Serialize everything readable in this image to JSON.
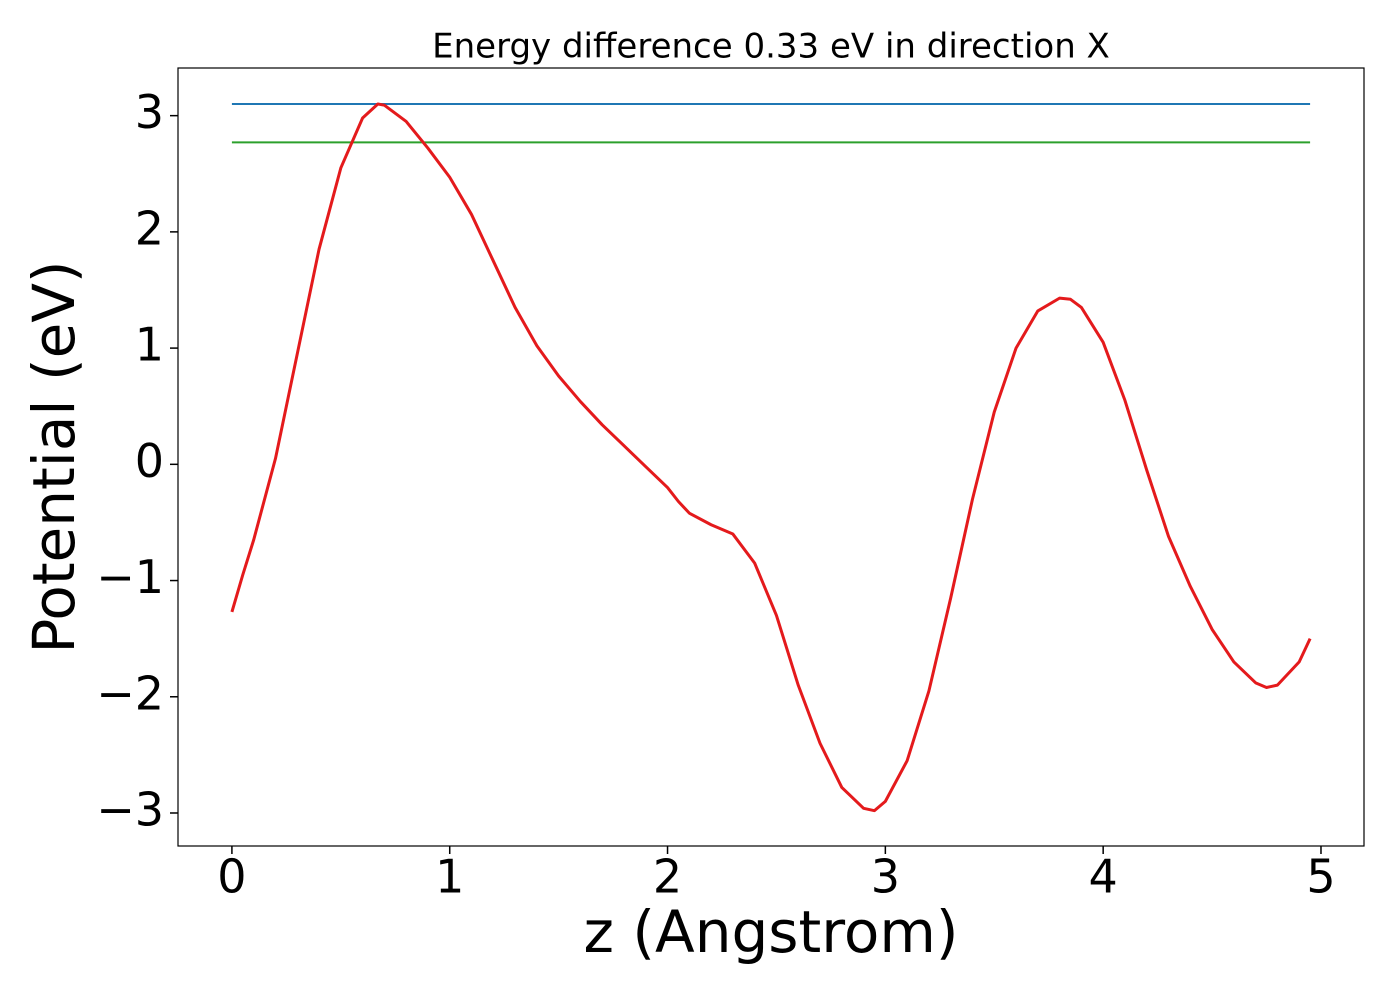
{
  "chart_data": {
    "type": "line",
    "title": "Energy difference 0.33 eV in direction X",
    "xlabel": "z (Angstrom)",
    "ylabel": "Potential (eV)",
    "xlim": [
      -0.2475,
      5.1975
    ],
    "ylim": [
      -3.284,
      3.41
    ],
    "xticks": [
      0,
      1,
      2,
      3,
      4,
      5
    ],
    "yticks": [
      {
        "value": -3,
        "label": "−3"
      },
      {
        "value": -2,
        "label": "−2"
      },
      {
        "value": -1,
        "label": "−1"
      },
      0,
      1,
      2,
      3
    ],
    "series": [
      {
        "color": "#1f77b4",
        "x": [
          0,
          4.95
        ],
        "values": [
          3.1,
          3.1
        ]
      },
      {
        "color": "#2ca02c",
        "x": [
          0,
          4.95
        ],
        "values": [
          2.77,
          2.77
        ]
      },
      {
        "color": "#e41a1c",
        "x": [
          0,
          0.05,
          0.1,
          0.2,
          0.3,
          0.4,
          0.5,
          0.6,
          0.67,
          0.7,
          0.8,
          0.9,
          1.0,
          1.1,
          1.2,
          1.3,
          1.4,
          1.5,
          1.6,
          1.7,
          1.8,
          1.9,
          2.0,
          2.05,
          2.1,
          2.2,
          2.3,
          2.4,
          2.5,
          2.6,
          2.7,
          2.8,
          2.9,
          2.95,
          3.0,
          3.1,
          3.2,
          3.3,
          3.4,
          3.5,
          3.6,
          3.7,
          3.8,
          3.85,
          3.9,
          4.0,
          4.1,
          4.2,
          4.3,
          4.4,
          4.5,
          4.6,
          4.7,
          4.75,
          4.8,
          4.9,
          4.95
        ],
        "values": [
          -1.27,
          -0.95,
          -0.65,
          0.05,
          0.95,
          1.85,
          2.55,
          2.98,
          3.1,
          3.09,
          2.95,
          2.72,
          2.47,
          2.15,
          1.75,
          1.35,
          1.02,
          0.76,
          0.54,
          0.34,
          0.16,
          -0.02,
          -0.2,
          -0.32,
          -0.42,
          -0.52,
          -0.6,
          -0.85,
          -1.3,
          -1.9,
          -2.4,
          -2.78,
          -2.96,
          -2.98,
          -2.9,
          -2.55,
          -1.95,
          -1.15,
          -0.3,
          0.45,
          1.0,
          1.32,
          1.43,
          1.42,
          1.35,
          1.05,
          0.55,
          -0.05,
          -0.62,
          -1.05,
          -1.42,
          -1.7,
          -1.88,
          -1.92,
          -1.9,
          -1.7,
          -1.5
        ]
      }
    ]
  }
}
